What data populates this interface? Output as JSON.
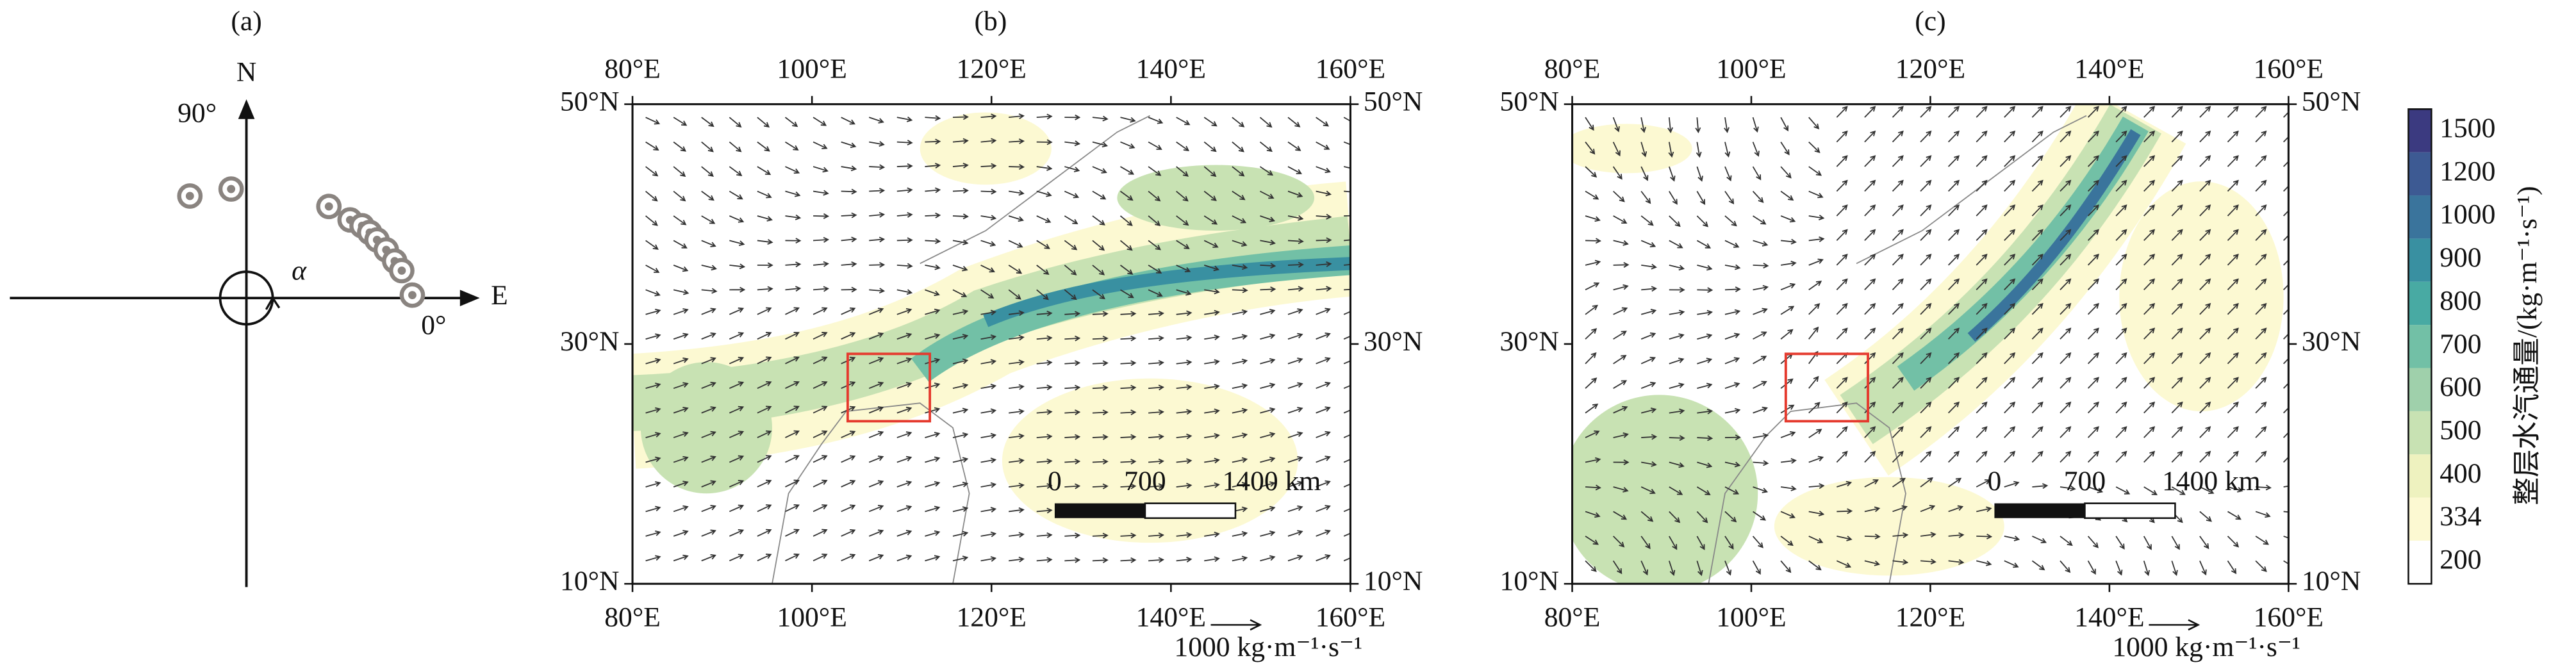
{
  "panels": [
    {
      "label": "(a)",
      "north": "N",
      "east": "E",
      "angle_90": "90°",
      "angle_0": "0°",
      "alpha": "α",
      "points": [
        {
          "angle": 119,
          "radius": 71
        },
        {
          "angle": 98,
          "radius": 67
        },
        {
          "angle": 48,
          "radius": 75
        },
        {
          "angle": 37,
          "radius": 79
        },
        {
          "angle": 32,
          "radius": 83
        },
        {
          "angle": 28,
          "radius": 85
        },
        {
          "angle": 24,
          "radius": 87
        },
        {
          "angle": 19,
          "radius": 90
        },
        {
          "angle": 14,
          "radius": 93
        },
        {
          "angle": 10,
          "radius": 96
        },
        {
          "angle": 1,
          "radius": 101
        }
      ]
    },
    {
      "label": "(b)"
    },
    {
      "label": "(c)"
    }
  ],
  "map": {
    "lon_ticks": [
      {
        "value": 80,
        "label": "80°E"
      },
      {
        "value": 100,
        "label": "100°E"
      },
      {
        "value": 120,
        "label": "120°E"
      },
      {
        "value": 140,
        "label": "140°E"
      },
      {
        "value": 160,
        "label": "160°E"
      }
    ],
    "lat_ticks": [
      {
        "value": 10,
        "label": "10°N"
      },
      {
        "value": 30,
        "label": "30°N"
      },
      {
        "value": 50,
        "label": "50°N"
      }
    ],
    "lon_range": [
      80,
      160
    ],
    "lat_range": [
      10,
      50
    ],
    "scale_bar": [
      "0",
      "700",
      "1400 km"
    ],
    "reference_vector": "1000 kg·m⁻¹·s⁻¹"
  },
  "colorbar": {
    "title": "整层水汽通量/(kg·m⁻¹·s⁻¹)",
    "levels": [
      {
        "value": 200,
        "color": "#ffffff"
      },
      {
        "value": 334,
        "color": "#fcf9d2"
      },
      {
        "value": 400,
        "color": "#eef2bf"
      },
      {
        "value": 500,
        "color": "#c8e2b3"
      },
      {
        "value": 600,
        "color": "#9fd0ab"
      },
      {
        "value": 700,
        "color": "#72c0a6"
      },
      {
        "value": 800,
        "color": "#48aaa3"
      },
      {
        "value": 900,
        "color": "#3990a1"
      },
      {
        "value": 1000,
        "color": "#3a749c"
      },
      {
        "value": 1200,
        "color": "#3d5a93"
      },
      {
        "value": 1500,
        "color": "#3b3a80"
      }
    ]
  }
}
